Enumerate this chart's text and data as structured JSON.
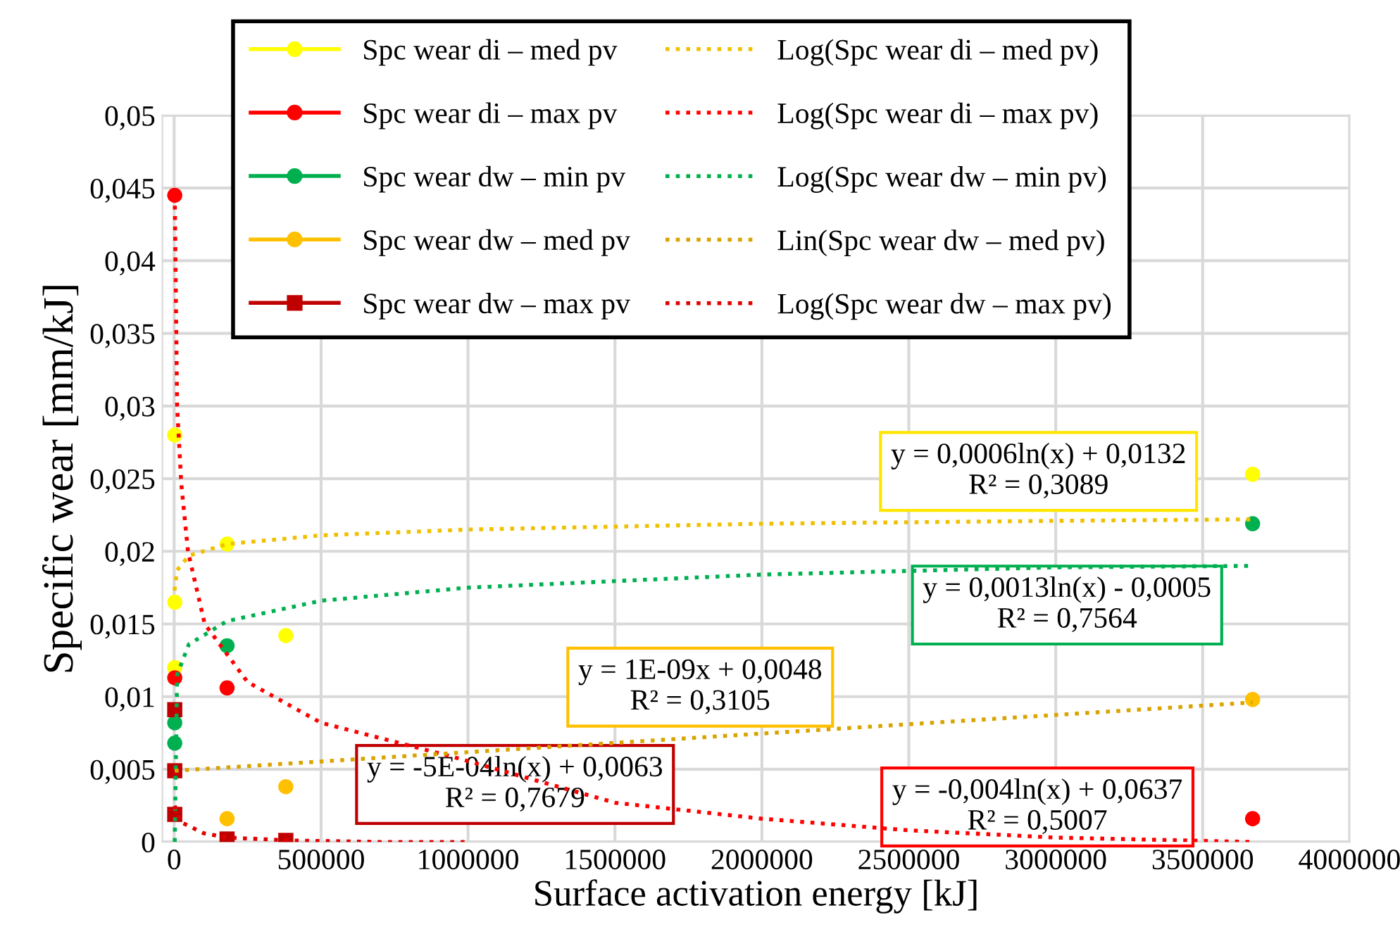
{
  "chart_data": {
    "type": "scatter",
    "xlabel": "Surface activation energy [kJ]",
    "ylabel": "Specific wear [mm/kJ]",
    "xlim": [
      -40000,
      4000000
    ],
    "xticks": [
      0,
      500000,
      1000000,
      1500000,
      2000000,
      2500000,
      3000000,
      3500000,
      4000000
    ],
    "ylim": [
      0,
      0.05
    ],
    "yticks": [
      0,
      {
        "value": 0.005,
        "label": "0,005"
      },
      {
        "value": 0.01,
        "label": "0,01"
      },
      {
        "value": 0.015,
        "label": "0,015"
      },
      {
        "value": 0.02,
        "label": "0,02"
      },
      {
        "value": 0.025,
        "label": "0,025"
      },
      {
        "value": 0.03,
        "label": "0,03"
      },
      {
        "value": 0.035,
        "label": "0,035"
      },
      {
        "value": 0.04,
        "label": "0,04"
      },
      {
        "value": 0.045,
        "label": "0,045"
      },
      {
        "value": 0.05,
        "label": "0,05"
      }
    ],
    "grid": true,
    "legend": "top",
    "series": [
      {
        "name": "Spc wear di – med pv",
        "color": "#ffff00",
        "marker": "circle",
        "x": [
          2000,
          2000,
          2000,
          180000,
          380000,
          3670000
        ],
        "values": [
          0.028,
          0.0165,
          0.012,
          0.0205,
          0.0142,
          0.0253
        ]
      },
      {
        "name": "Spc wear di – max pv",
        "color": "#ff0000",
        "marker": "circle",
        "x": [
          2000,
          2000,
          180000,
          3670000
        ],
        "values": [
          0.0445,
          0.0113,
          0.0106,
          0.0016
        ]
      },
      {
        "name": "Spc wear dw – min pv",
        "color": "#00b050",
        "marker": "circle",
        "x": [
          2000,
          2000,
          180000,
          3670000
        ],
        "values": [
          0.0082,
          0.0068,
          0.0135,
          0.0219
        ]
      },
      {
        "name": "Spc wear dw – med pv",
        "color": "#ffc000",
        "marker": "circle",
        "x": [
          180000,
          380000,
          3670000
        ],
        "values": [
          0.0016,
          0.0038,
          0.0098
        ]
      },
      {
        "name": "Spc wear dw – max pv",
        "color": "#c00000",
        "marker": "square",
        "x": [
          2000,
          2000,
          2000,
          180000,
          380000
        ],
        "values": [
          0.0091,
          0.0049,
          0.0019,
          0.0002,
          0.0001
        ]
      },
      {
        "name": "Log(Spc wear di – med pv)",
        "type": "line",
        "line_style": "dotted",
        "color": "#f0c000",
        "x": [
          1000,
          10000,
          50000,
          180000,
          500000,
          1000000,
          2000000,
          3000000,
          3670000
        ],
        "values": [
          0.0173,
          0.0187,
          0.0197,
          0.0205,
          0.0211,
          0.0215,
          0.0219,
          0.0221,
          0.0222
        ]
      },
      {
        "name": "Log(Spc wear di – max pv)",
        "type": "line",
        "line_style": "dotted",
        "color": "#ff0000",
        "x": [
          2000,
          10000,
          24000,
          47000,
          104000,
          250000,
          500000,
          940000,
          1500000,
          2000000,
          2500000,
          3000000,
          3670000
        ],
        "values": [
          0.0445,
          0.03,
          0.0247,
          0.02,
          0.015,
          0.011,
          0.0082,
          0.0059,
          0.0027,
          0.0016,
          0.0008,
          0.0003,
          0.0
        ]
      },
      {
        "name": "Log(Spc wear dw – min pv)",
        "type": "line",
        "line_style": "dotted",
        "color": "#00b050",
        "x": [
          2000,
          10000,
          50000,
          180000,
          500000,
          1000000,
          2000000,
          3000000,
          3670000
        ],
        "values": [
          0.0,
          0.0115,
          0.0136,
          0.0152,
          0.0166,
          0.0175,
          0.0184,
          0.0189,
          0.019
        ]
      },
      {
        "name": "Lin(Spc wear dw – med pv)",
        "type": "line",
        "line_style": "dotted",
        "color": "#d9a400",
        "x": [
          2000,
          3670000
        ],
        "values": [
          0.0049,
          0.0096
        ]
      },
      {
        "name": "Log(Spc wear dw – max pv)",
        "type": "line",
        "line_style": "dotted",
        "color": "#e00000",
        "x": [
          2000,
          20000,
          100000,
          180000,
          400000,
          700000,
          1000000
        ],
        "values": [
          0.0025,
          0.0014,
          0.0006,
          0.0003,
          0.0001,
          0.0,
          0.0
        ]
      }
    ],
    "annotations": [
      "y = 0,0006ln(x) + 0,0132\nR² = 0,3089",
      "y = 0,0013ln(x) - 0,0005\nR² = 0,7564",
      "y = 1E-09x + 0,0048\nR² = 0,3105",
      "y = -5E-04ln(x) + 0,0063\nR² = 0,7679",
      "y = -0,004ln(x) + 0,0637\nR² = 0,5007"
    ]
  }
}
